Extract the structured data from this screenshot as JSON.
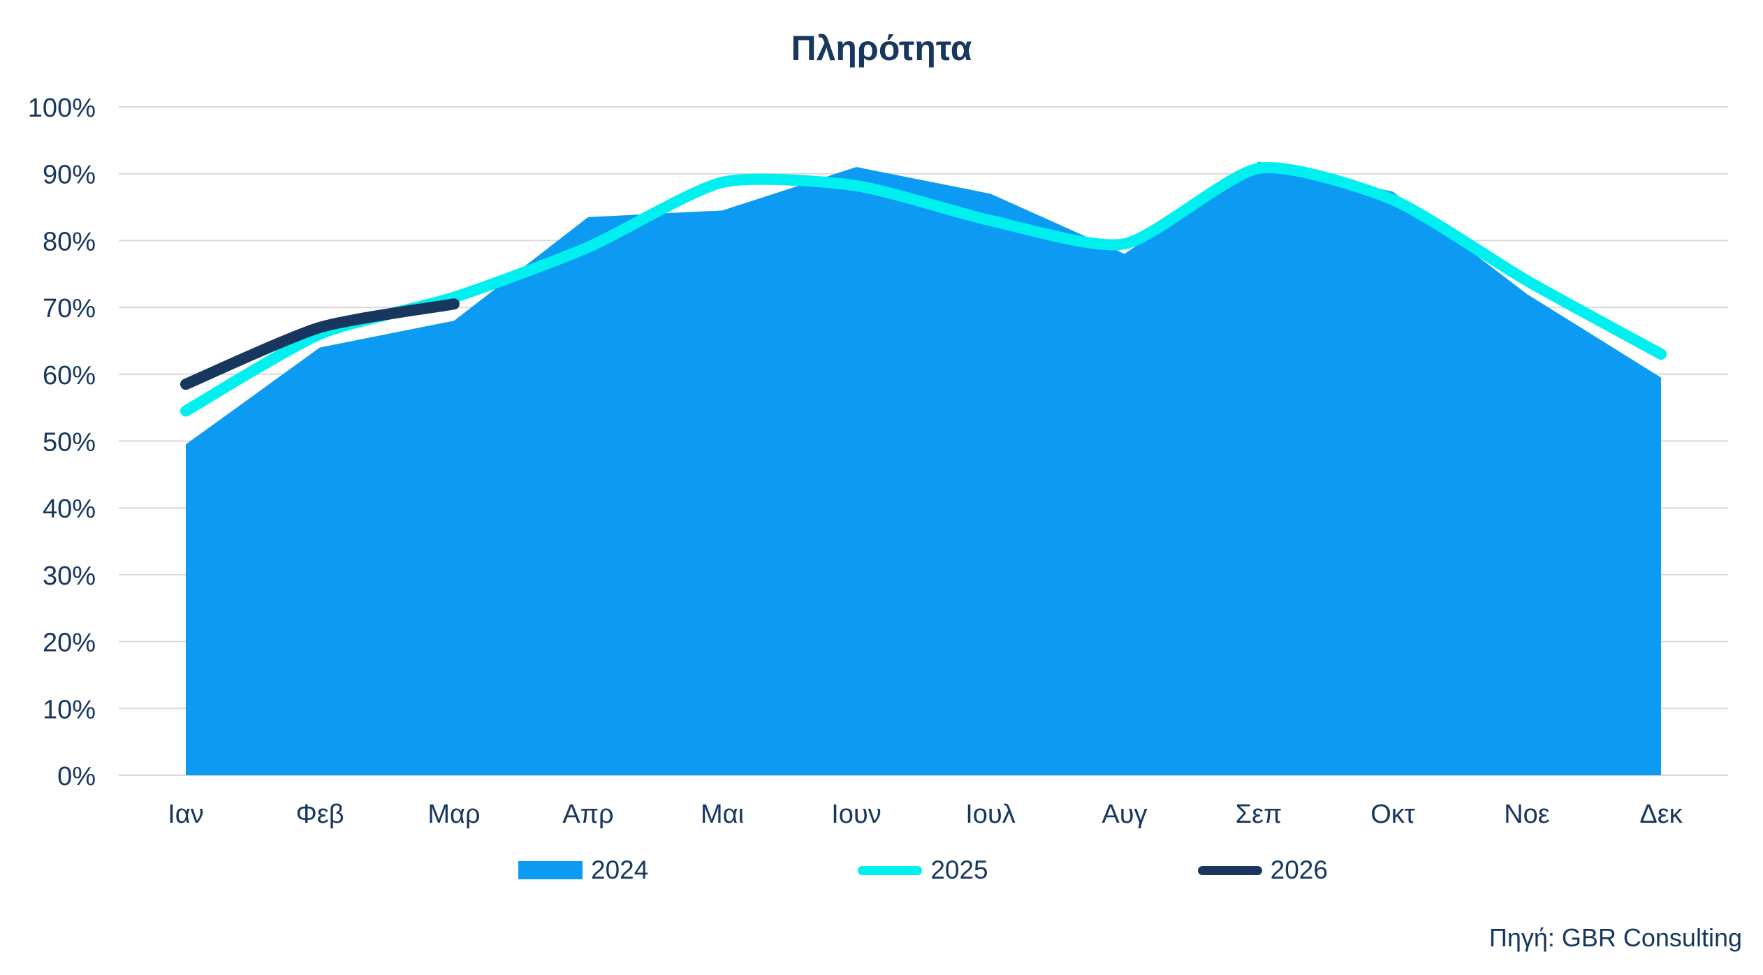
{
  "chart_data": {
    "type": "area",
    "title": "Πληρότητα",
    "categories": [
      "Ιαν",
      "Φεβ",
      "Μαρ",
      "Απρ",
      "Μαι",
      "Ιουν",
      "Ιουλ",
      "Αυγ",
      "Σεπ",
      "Οκτ",
      "Νοε",
      "Δεκ"
    ],
    "series": [
      {
        "name": "2024",
        "type": "area",
        "smooth": false,
        "color": "#0d9af2",
        "values": [
          49.5,
          64,
          68,
          83.5,
          84.5,
          91,
          87,
          78,
          91.8,
          87.3,
          72,
          59.5
        ]
      },
      {
        "name": "2025",
        "type": "line",
        "smooth": true,
        "color": "#00f0f0",
        "values": [
          54.5,
          66,
          71.5,
          79,
          88.7,
          88.2,
          83,
          79.5,
          90.8,
          86.1,
          74,
          63
        ]
      },
      {
        "name": "2026",
        "type": "line",
        "smooth": true,
        "color": "#17375e",
        "values": [
          58.5,
          67,
          70.5
        ]
      }
    ],
    "ylim": [
      0,
      100
    ],
    "ytick_step": 10,
    "ytick_labels": [
      "0%",
      "10%",
      "20%",
      "30%",
      "40%",
      "50%",
      "60%",
      "70%",
      "80%",
      "90%",
      "100%"
    ],
    "grid": true,
    "gridline_color": "#d9d9d9",
    "legend_position": "bottom",
    "text_color": "#17375e",
    "source_note": "Πηγή: GBR Consulting"
  }
}
